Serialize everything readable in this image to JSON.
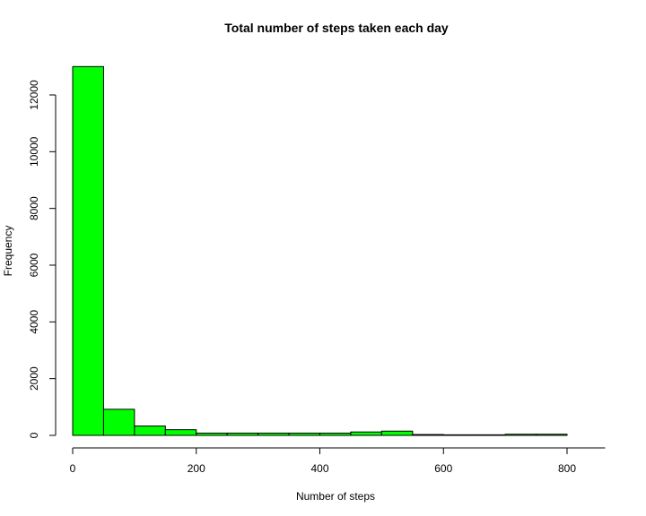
{
  "chart_data": {
    "type": "bar",
    "title": "Total number of steps taken each day",
    "xlabel": "Number of steps",
    "ylabel": "Frequency",
    "bar_color": "#00FF00",
    "bin_width": 50,
    "bins": [
      {
        "start": 0,
        "end": 50,
        "count": 13000
      },
      {
        "start": 50,
        "end": 100,
        "count": 920
      },
      {
        "start": 100,
        "end": 150,
        "count": 330
      },
      {
        "start": 150,
        "end": 200,
        "count": 200
      },
      {
        "start": 200,
        "end": 250,
        "count": 80
      },
      {
        "start": 250,
        "end": 300,
        "count": 80
      },
      {
        "start": 300,
        "end": 350,
        "count": 80
      },
      {
        "start": 350,
        "end": 400,
        "count": 80
      },
      {
        "start": 400,
        "end": 450,
        "count": 80
      },
      {
        "start": 450,
        "end": 500,
        "count": 120
      },
      {
        "start": 500,
        "end": 550,
        "count": 150
      },
      {
        "start": 550,
        "end": 600,
        "count": 30
      },
      {
        "start": 600,
        "end": 650,
        "count": 20
      },
      {
        "start": 650,
        "end": 700,
        "count": 20
      },
      {
        "start": 700,
        "end": 750,
        "count": 40
      },
      {
        "start": 750,
        "end": 800,
        "count": 40
      }
    ],
    "xlim": [
      0,
      850
    ],
    "ylim": [
      0,
      13000
    ],
    "x_ticks": [
      0,
      200,
      400,
      600,
      800
    ],
    "y_ticks": [
      0,
      2000,
      4000,
      6000,
      8000,
      10000,
      12000
    ],
    "grid": false,
    "legend": "none"
  }
}
